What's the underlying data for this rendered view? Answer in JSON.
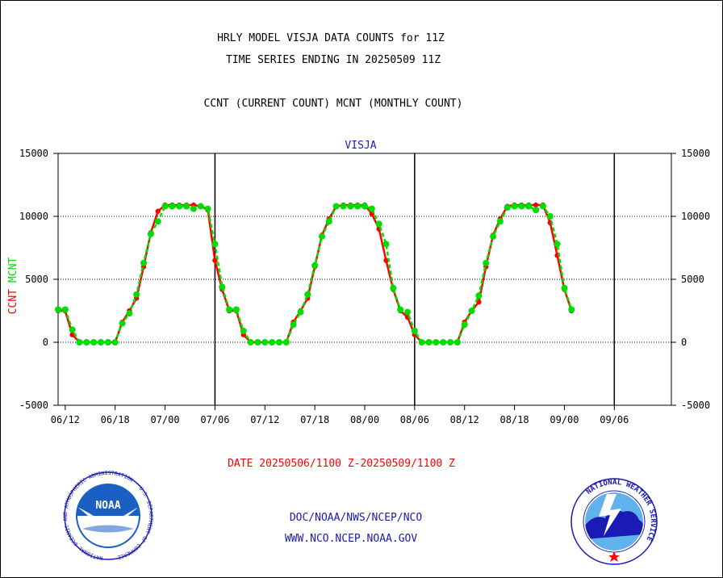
{
  "header": {
    "line1": "HRLY MODEL VISJA DATA COUNTS for 11Z",
    "line2": "TIME SERIES ENDING IN 20250509 11Z",
    "line3": "CCNT (CURRENT COUNT) MCNT (MONTHLY COUNT)"
  },
  "footer": {
    "date_range": "DATE 20250506/1100 Z-20250509/1100 Z",
    "org": "DOC/NOAA/NWS/NCEP/NCO",
    "url": "WWW.NCO.NCEP.NOAA.GOV"
  },
  "logos": {
    "left": "NOAA",
    "left_ring": "NATIONAL OCEANIC AND ATMOSPHERIC ADMINISTRATION · U.S. DEPARTMENT OF COMMERCE",
    "right_ring": "NATIONAL WEATHER SERVICE"
  },
  "colors": {
    "ccnt": "#ff0000",
    "mcnt": "#00dd00",
    "title": "#1a1ab4",
    "date": "#ff0000"
  },
  "chart_data": {
    "type": "line",
    "title": "VISJA",
    "ylabel_parts": [
      "CCNT",
      "MCNT"
    ],
    "ylim": [
      -5000,
      15000
    ],
    "yticks": [
      -5000,
      0,
      5000,
      10000,
      15000
    ],
    "xlim": [
      0,
      86
    ],
    "xticks": [
      {
        "x": 1,
        "label": "06/12"
      },
      {
        "x": 8,
        "label": "06/18"
      },
      {
        "x": 15,
        "label": "07/00"
      },
      {
        "x": 22,
        "label": "07/06"
      },
      {
        "x": 29,
        "label": "07/12"
      },
      {
        "x": 36,
        "label": "07/18"
      },
      {
        "x": 43,
        "label": "08/00"
      },
      {
        "x": 50,
        "label": "08/06"
      },
      {
        "x": 57,
        "label": "08/12"
      },
      {
        "x": 64,
        "label": "08/18"
      },
      {
        "x": 71,
        "label": "09/00"
      },
      {
        "x": 78,
        "label": "09/06"
      }
    ],
    "vlines_x": [
      22,
      50,
      78
    ],
    "grid": true,
    "series": [
      {
        "name": "CCNT",
        "color": "#ff0000",
        "values": [
          2500,
          2500,
          600,
          0,
          0,
          0,
          0,
          0,
          0,
          1600,
          2500,
          3500,
          6000,
          8700,
          10400,
          10900,
          10900,
          10900,
          10900,
          10900,
          10800,
          10500,
          6500,
          4200,
          2500,
          2500,
          600,
          0,
          0,
          0,
          0,
          0,
          0,
          1600,
          2500,
          3500,
          6000,
          8500,
          9800,
          10800,
          10900,
          10900,
          10900,
          10900,
          10200,
          9000,
          6500,
          4200,
          2500,
          2000,
          600,
          0,
          0,
          0,
          0,
          0,
          0,
          1600,
          2500,
          3200,
          6000,
          8500,
          9800,
          10800,
          10900,
          10900,
          10900,
          10900,
          10900,
          9500,
          6900,
          4200,
          2500
        ]
      },
      {
        "name": "MCNT",
        "color": "#00dd00",
        "values": [
          2600,
          2600,
          1000,
          0,
          0,
          0,
          0,
          0,
          0,
          1500,
          2300,
          3800,
          6300,
          8600,
          9600,
          10800,
          10800,
          10800,
          10800,
          10600,
          10800,
          10600,
          7800,
          4400,
          2600,
          2600,
          900,
          0,
          0,
          0,
          0,
          0,
          0,
          1400,
          2400,
          3800,
          6100,
          8400,
          9600,
          10800,
          10800,
          10800,
          10800,
          10800,
          10600,
          9400,
          7800,
          4300,
          2600,
          2400,
          900,
          0,
          0,
          0,
          0,
          0,
          0,
          1400,
          2500,
          3700,
          6300,
          8400,
          9600,
          10700,
          10800,
          10800,
          10800,
          10500,
          10800,
          10000,
          7800,
          4300,
          2600
        ]
      }
    ]
  }
}
